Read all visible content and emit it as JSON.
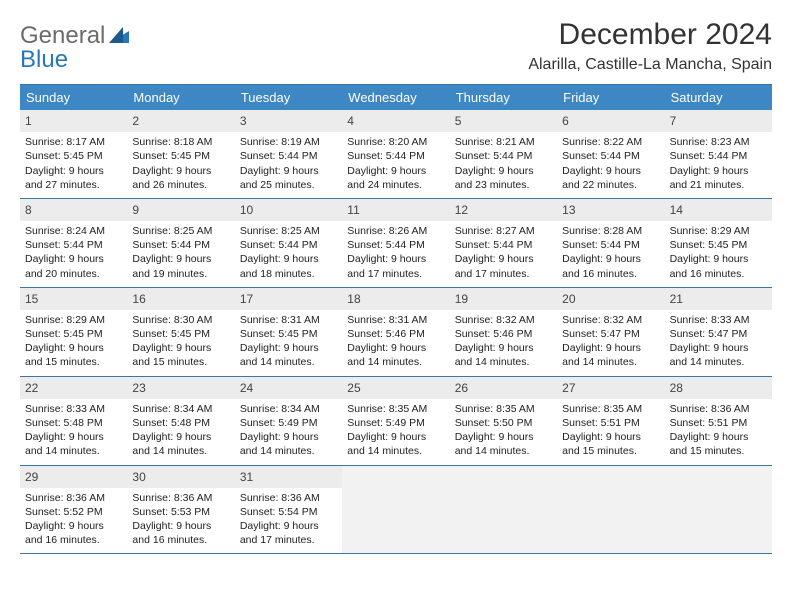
{
  "logo": {
    "line1": "General",
    "line2": "Blue"
  },
  "header": {
    "title": "December 2024",
    "location": "Alarilla, Castille-La Mancha, Spain"
  },
  "colors": {
    "header_bg": "#3d87c4",
    "rule": "#3a76a8",
    "daynum_bg": "#ececec",
    "empty_bg": "#f2f2f2",
    "logo_gray": "#6b6b6b",
    "logo_blue": "#2a77b8"
  },
  "days_of_week": [
    "Sunday",
    "Monday",
    "Tuesday",
    "Wednesday",
    "Thursday",
    "Friday",
    "Saturday"
  ],
  "weeks": [
    [
      {
        "n": "1",
        "sunrise": "Sunrise: 8:17 AM",
        "sunset": "Sunset: 5:45 PM",
        "daylight1": "Daylight: 9 hours",
        "daylight2": "and 27 minutes."
      },
      {
        "n": "2",
        "sunrise": "Sunrise: 8:18 AM",
        "sunset": "Sunset: 5:45 PM",
        "daylight1": "Daylight: 9 hours",
        "daylight2": "and 26 minutes."
      },
      {
        "n": "3",
        "sunrise": "Sunrise: 8:19 AM",
        "sunset": "Sunset: 5:44 PM",
        "daylight1": "Daylight: 9 hours",
        "daylight2": "and 25 minutes."
      },
      {
        "n": "4",
        "sunrise": "Sunrise: 8:20 AM",
        "sunset": "Sunset: 5:44 PM",
        "daylight1": "Daylight: 9 hours",
        "daylight2": "and 24 minutes."
      },
      {
        "n": "5",
        "sunrise": "Sunrise: 8:21 AM",
        "sunset": "Sunset: 5:44 PM",
        "daylight1": "Daylight: 9 hours",
        "daylight2": "and 23 minutes."
      },
      {
        "n": "6",
        "sunrise": "Sunrise: 8:22 AM",
        "sunset": "Sunset: 5:44 PM",
        "daylight1": "Daylight: 9 hours",
        "daylight2": "and 22 minutes."
      },
      {
        "n": "7",
        "sunrise": "Sunrise: 8:23 AM",
        "sunset": "Sunset: 5:44 PM",
        "daylight1": "Daylight: 9 hours",
        "daylight2": "and 21 minutes."
      }
    ],
    [
      {
        "n": "8",
        "sunrise": "Sunrise: 8:24 AM",
        "sunset": "Sunset: 5:44 PM",
        "daylight1": "Daylight: 9 hours",
        "daylight2": "and 20 minutes."
      },
      {
        "n": "9",
        "sunrise": "Sunrise: 8:25 AM",
        "sunset": "Sunset: 5:44 PM",
        "daylight1": "Daylight: 9 hours",
        "daylight2": "and 19 minutes."
      },
      {
        "n": "10",
        "sunrise": "Sunrise: 8:25 AM",
        "sunset": "Sunset: 5:44 PM",
        "daylight1": "Daylight: 9 hours",
        "daylight2": "and 18 minutes."
      },
      {
        "n": "11",
        "sunrise": "Sunrise: 8:26 AM",
        "sunset": "Sunset: 5:44 PM",
        "daylight1": "Daylight: 9 hours",
        "daylight2": "and 17 minutes."
      },
      {
        "n": "12",
        "sunrise": "Sunrise: 8:27 AM",
        "sunset": "Sunset: 5:44 PM",
        "daylight1": "Daylight: 9 hours",
        "daylight2": "and 17 minutes."
      },
      {
        "n": "13",
        "sunrise": "Sunrise: 8:28 AM",
        "sunset": "Sunset: 5:44 PM",
        "daylight1": "Daylight: 9 hours",
        "daylight2": "and 16 minutes."
      },
      {
        "n": "14",
        "sunrise": "Sunrise: 8:29 AM",
        "sunset": "Sunset: 5:45 PM",
        "daylight1": "Daylight: 9 hours",
        "daylight2": "and 16 minutes."
      }
    ],
    [
      {
        "n": "15",
        "sunrise": "Sunrise: 8:29 AM",
        "sunset": "Sunset: 5:45 PM",
        "daylight1": "Daylight: 9 hours",
        "daylight2": "and 15 minutes."
      },
      {
        "n": "16",
        "sunrise": "Sunrise: 8:30 AM",
        "sunset": "Sunset: 5:45 PM",
        "daylight1": "Daylight: 9 hours",
        "daylight2": "and 15 minutes."
      },
      {
        "n": "17",
        "sunrise": "Sunrise: 8:31 AM",
        "sunset": "Sunset: 5:45 PM",
        "daylight1": "Daylight: 9 hours",
        "daylight2": "and 14 minutes."
      },
      {
        "n": "18",
        "sunrise": "Sunrise: 8:31 AM",
        "sunset": "Sunset: 5:46 PM",
        "daylight1": "Daylight: 9 hours",
        "daylight2": "and 14 minutes."
      },
      {
        "n": "19",
        "sunrise": "Sunrise: 8:32 AM",
        "sunset": "Sunset: 5:46 PM",
        "daylight1": "Daylight: 9 hours",
        "daylight2": "and 14 minutes."
      },
      {
        "n": "20",
        "sunrise": "Sunrise: 8:32 AM",
        "sunset": "Sunset: 5:47 PM",
        "daylight1": "Daylight: 9 hours",
        "daylight2": "and 14 minutes."
      },
      {
        "n": "21",
        "sunrise": "Sunrise: 8:33 AM",
        "sunset": "Sunset: 5:47 PM",
        "daylight1": "Daylight: 9 hours",
        "daylight2": "and 14 minutes."
      }
    ],
    [
      {
        "n": "22",
        "sunrise": "Sunrise: 8:33 AM",
        "sunset": "Sunset: 5:48 PM",
        "daylight1": "Daylight: 9 hours",
        "daylight2": "and 14 minutes."
      },
      {
        "n": "23",
        "sunrise": "Sunrise: 8:34 AM",
        "sunset": "Sunset: 5:48 PM",
        "daylight1": "Daylight: 9 hours",
        "daylight2": "and 14 minutes."
      },
      {
        "n": "24",
        "sunrise": "Sunrise: 8:34 AM",
        "sunset": "Sunset: 5:49 PM",
        "daylight1": "Daylight: 9 hours",
        "daylight2": "and 14 minutes."
      },
      {
        "n": "25",
        "sunrise": "Sunrise: 8:35 AM",
        "sunset": "Sunset: 5:49 PM",
        "daylight1": "Daylight: 9 hours",
        "daylight2": "and 14 minutes."
      },
      {
        "n": "26",
        "sunrise": "Sunrise: 8:35 AM",
        "sunset": "Sunset: 5:50 PM",
        "daylight1": "Daylight: 9 hours",
        "daylight2": "and 14 minutes."
      },
      {
        "n": "27",
        "sunrise": "Sunrise: 8:35 AM",
        "sunset": "Sunset: 5:51 PM",
        "daylight1": "Daylight: 9 hours",
        "daylight2": "and 15 minutes."
      },
      {
        "n": "28",
        "sunrise": "Sunrise: 8:36 AM",
        "sunset": "Sunset: 5:51 PM",
        "daylight1": "Daylight: 9 hours",
        "daylight2": "and 15 minutes."
      }
    ],
    [
      {
        "n": "29",
        "sunrise": "Sunrise: 8:36 AM",
        "sunset": "Sunset: 5:52 PM",
        "daylight1": "Daylight: 9 hours",
        "daylight2": "and 16 minutes."
      },
      {
        "n": "30",
        "sunrise": "Sunrise: 8:36 AM",
        "sunset": "Sunset: 5:53 PM",
        "daylight1": "Daylight: 9 hours",
        "daylight2": "and 16 minutes."
      },
      {
        "n": "31",
        "sunrise": "Sunrise: 8:36 AM",
        "sunset": "Sunset: 5:54 PM",
        "daylight1": "Daylight: 9 hours",
        "daylight2": "and 17 minutes."
      },
      null,
      null,
      null,
      null
    ]
  ]
}
